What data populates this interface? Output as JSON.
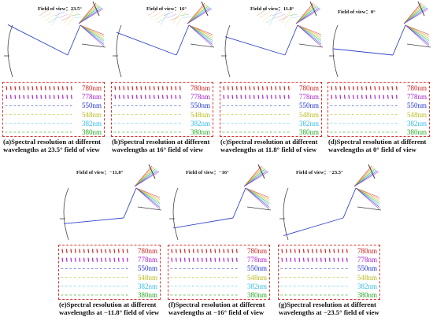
{
  "panels": [
    {
      "id": "a",
      "fov_label": "Field of view：23.5°",
      "caption": "(a)Spectral resolution at different wavelengths at 23.5° field of view",
      "fov_deg": 23.5
    },
    {
      "id": "b",
      "fov_label": "Field of view：16°",
      "caption": "(b)Spectral resolution at different wavelengths at 16° field of view",
      "fov_deg": 16
    },
    {
      "id": "c",
      "fov_label": "Field of view：11.8°",
      "caption": "(c)Spectral resolution at different wavelengths at 11.8° field of view",
      "fov_deg": 11.8
    },
    {
      "id": "d",
      "fov_label": "Field of view：0°",
      "caption": "(d)Spectral resolution at different wavelengths at 0° field of view",
      "fov_deg": 0
    },
    {
      "id": "e",
      "fov_label": "Field of view：−11.8°",
      "caption": "(e)Spectral resolution at different wavelengths at −11.8° field of view",
      "fov_deg": -11.8
    },
    {
      "id": "f",
      "fov_label": "Field of view：−16°",
      "caption": "(f)Spectral resolution at different wavelengths at −16° field of view",
      "fov_deg": -16
    },
    {
      "id": "g",
      "fov_label": "Field of view：−23.5°",
      "caption": "(g)Spectral resolution at different wavelengths at −23.5° field of view",
      "fov_deg": -23.5
    }
  ],
  "wavelengths": [
    {
      "label": "780nm",
      "color": "#cc2222"
    },
    {
      "label": "778nm",
      "color": "#aa22cc"
    },
    {
      "label": "550nm",
      "color": "#2233cc"
    },
    {
      "label": "548nm",
      "color": "#bbbb22"
    },
    {
      "label": "382nm",
      "color": "#33bbee"
    },
    {
      "label": "380nm",
      "color": "#22aa22"
    }
  ]
}
